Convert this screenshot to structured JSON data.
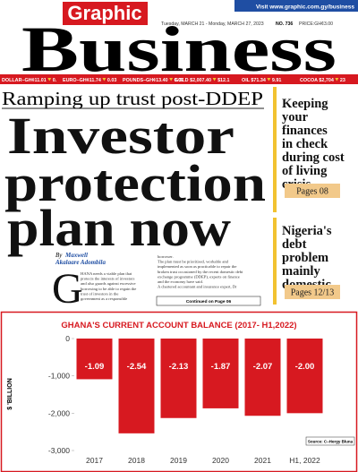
{
  "header": {
    "visit": "Visit www.graphic.com.gy/business",
    "brand": "Graphic",
    "title": "Business",
    "date": "Tuesday, MARCH 21 - Monday, MARCH 27, 2023",
    "issue": "NO. 736",
    "price": "PRICE:GH¢3.00"
  },
  "ticker": [
    "DOLLAR–GH¢11.01",
    "0.",
    "EURO–GH¢11.74",
    "0.03",
    "POUNDS–GH¢13.40",
    "0.07",
    "GOLD $2,007.40",
    "$12.1",
    "OIL $71.34",
    "9.91",
    "COCOA $2,704",
    "23"
  ],
  "headline": {
    "kicker": "Ramping up trust post-DDEP",
    "lines": [
      "Investor",
      "protection",
      "plan now"
    ],
    "byline_prefix": "By",
    "author": [
      "Maxwell",
      "Akalaare Adombila"
    ],
    "drop_cap": "G",
    "column1": [
      "HANA needs a viable plan that",
      "protects the interests of investors",
      "and also guards against excessive",
      "borrowing to be able to regain the",
      "trust of investors in the",
      "government as a responsible"
    ],
    "column2": [
      "borrower.",
      "The plan must be prioritised, workable and",
      "implemented as soon as practicable to repair the",
      "broken trust occasioned by the recent domestic debt",
      "exchange programme (DDEP), experts on finance",
      "and the economy have said.",
      "A chartered accountant and insurance expert, Dr"
    ],
    "continued": "Continued on Page 06"
  },
  "sidebar": [
    {
      "title": [
        "Keeping",
        "your",
        "finances",
        "in check",
        "during cost",
        "of living",
        "crisis"
      ],
      "pages": "Pages 08"
    },
    {
      "title": [
        "Nigeria's",
        "debt",
        "problem",
        "mainly",
        "domestic"
      ],
      "pages": "Pages 12/13"
    }
  ],
  "chart_data": {
    "type": "bar",
    "title": "GHANA'S CURRENT ACCOUNT BALANCE (2017- H1,2022)",
    "y_label": "$ 'BILLION",
    "source": "Source: C–Hergy Bluna",
    "categories": [
      "2017",
      "2018",
      "2019",
      "2020",
      "2021",
      "H1, 2022"
    ],
    "values": [
      -1090,
      -2540,
      -2130,
      -1870,
      -2070,
      -2000
    ],
    "value_labels": [
      "-1.09",
      "-2.54",
      "-2.13",
      "-1.87",
      "-2.07",
      "-2.00"
    ],
    "color": "#d71920",
    "ylim": [
      -3000,
      0
    ],
    "yticks": [
      0,
      {
        "value": -1000,
        "label": "-1,000"
      },
      {
        "value": -2000,
        "label": "-2,000"
      },
      {
        "value": -3000,
        "label": "-3,000"
      }
    ],
    "grid": false
  }
}
